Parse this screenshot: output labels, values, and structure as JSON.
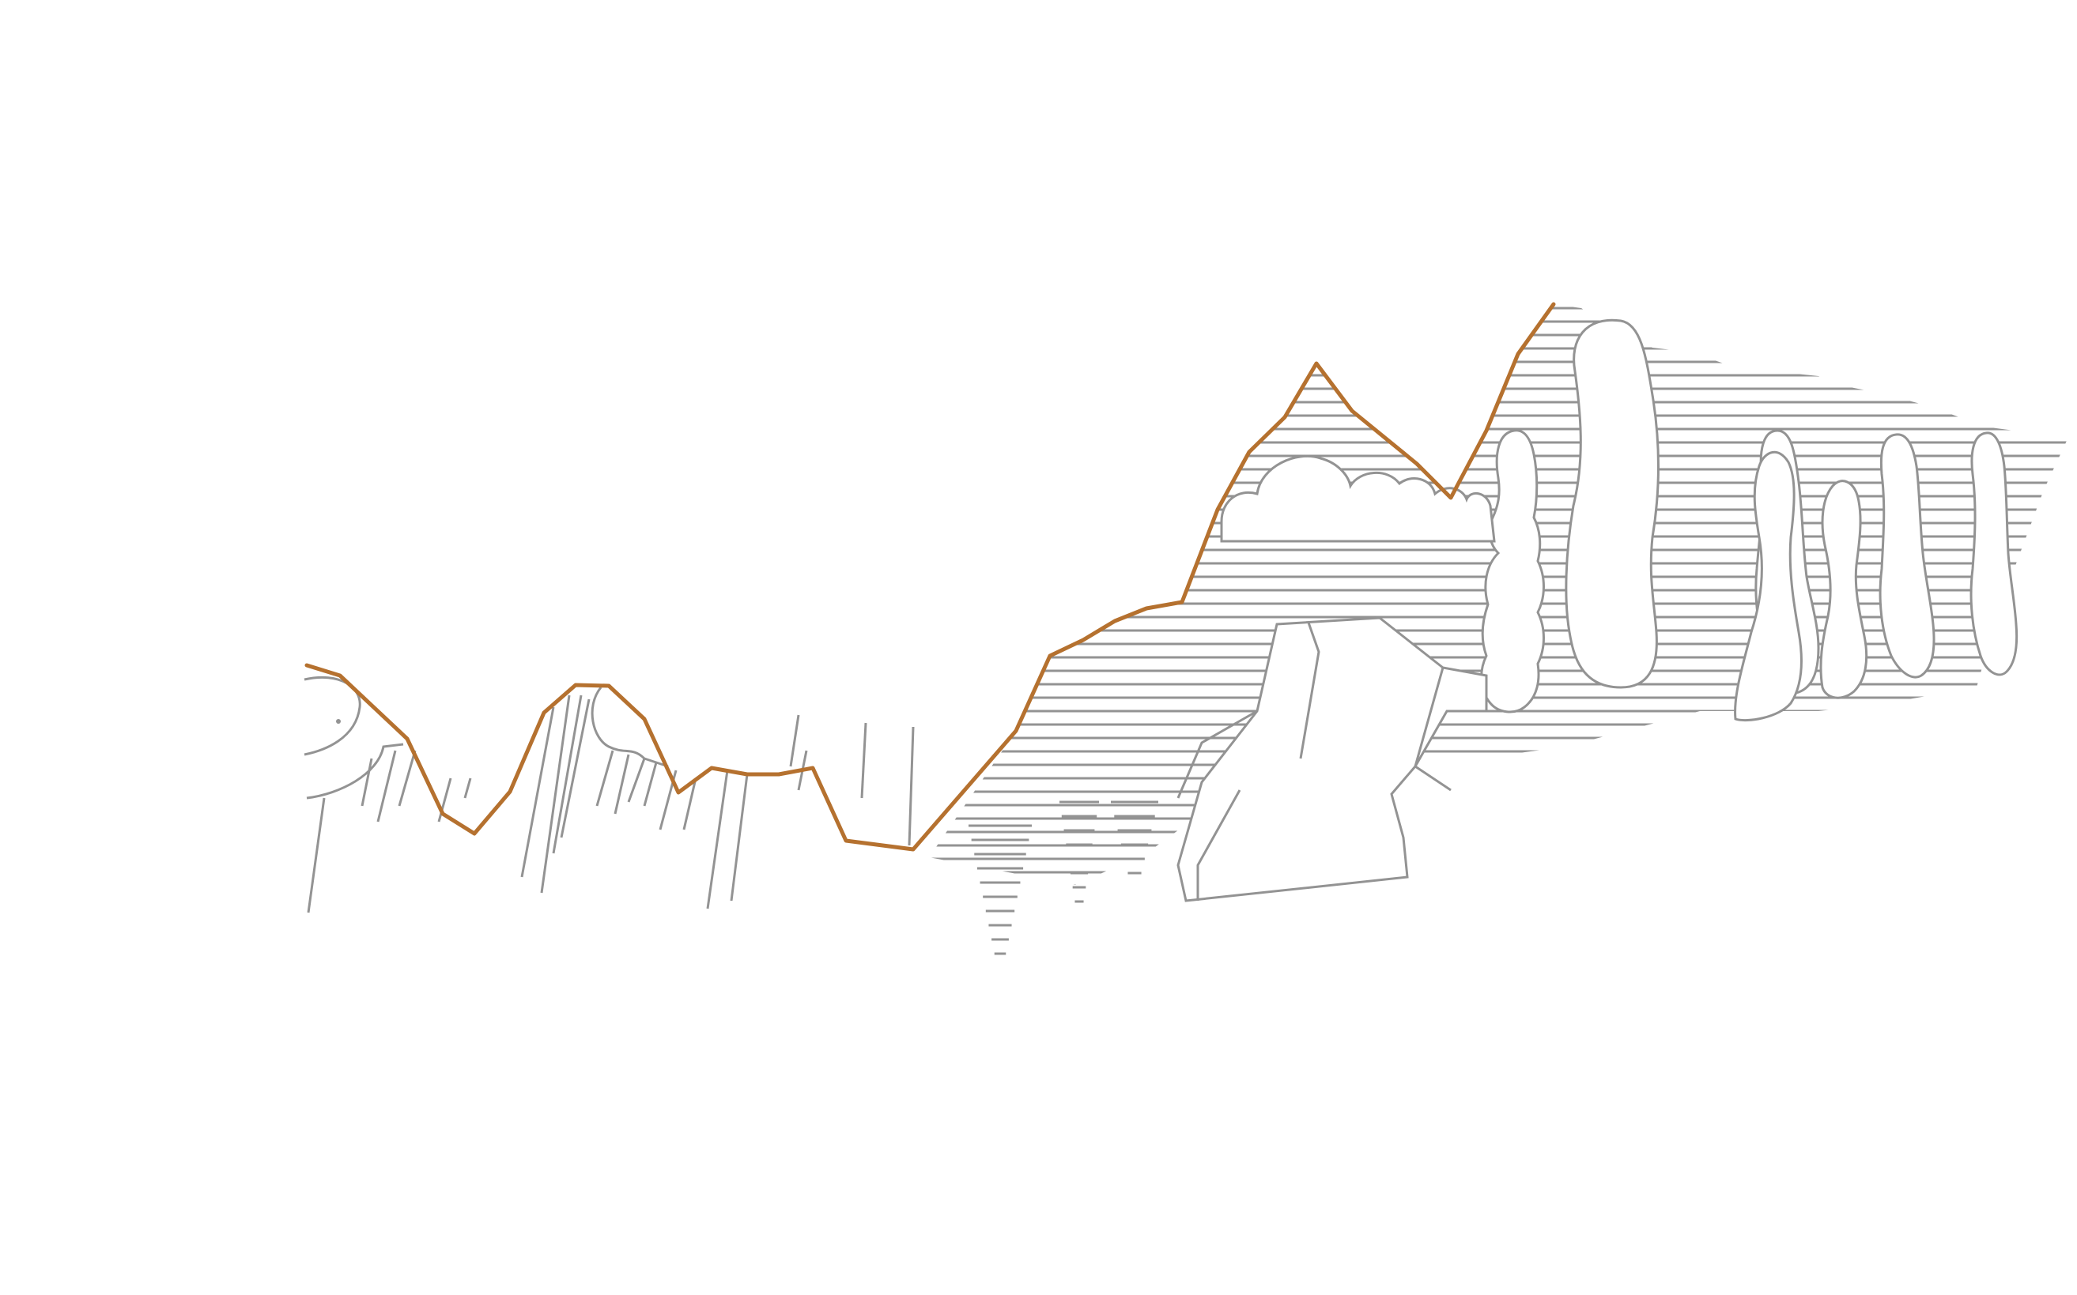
{
  "illustration": {
    "subject": "mountain-landscape-elevation-profile",
    "colors": {
      "background": "#ffffff",
      "hatch": "#939393",
      "profile_line": "#b5712f"
    }
  }
}
